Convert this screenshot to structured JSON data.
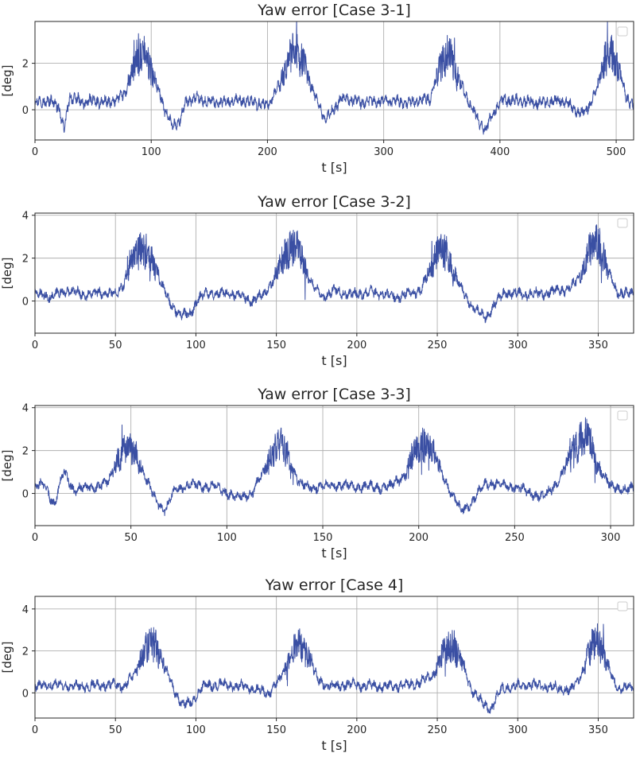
{
  "chart_data": [
    {
      "type": "line",
      "title": "Yaw error [Case 3-1]",
      "xlabel": "t [s]",
      "ylabel": "[deg]",
      "xlim": [
        0,
        515
      ],
      "ylim": [
        -1.3,
        3.8
      ],
      "xticks": [
        0,
        100,
        200,
        300,
        400,
        500
      ],
      "yticks": [
        0,
        2
      ],
      "grid": true,
      "legend": "top-right (empty)",
      "period_s": 132,
      "series": [
        {
          "name": "Yaw error",
          "color": "#3a4fa3",
          "x": [
            0,
            10,
            20,
            25,
            30,
            40,
            50,
            60,
            70,
            78,
            85,
            92,
            98,
            105,
            112,
            118,
            124,
            130,
            136,
            145,
            160,
            180,
            200,
            210,
            217,
            224,
            231,
            238,
            244,
            250,
            256,
            262,
            268,
            280,
            300,
            320,
            340,
            345,
            351,
            357,
            363,
            370,
            376,
            382,
            388,
            394,
            400,
            415,
            435,
            455,
            470,
            477,
            483,
            489,
            495,
            502,
            508,
            515
          ],
          "y": [
            0.3,
            0.4,
            0.2,
            -0.9,
            0.6,
            0.3,
            0.4,
            0.3,
            0.4,
            0.8,
            1.8,
            2.4,
            2.0,
            1.0,
            0.0,
            -0.7,
            -0.5,
            0.3,
            0.5,
            0.4,
            0.3,
            0.4,
            0.2,
            1.0,
            2.0,
            2.6,
            2.0,
            1.0,
            0.2,
            -0.4,
            -0.1,
            0.4,
            0.5,
            0.3,
            0.4,
            0.3,
            0.5,
            1.3,
            2.2,
            2.4,
            1.6,
            0.6,
            0.1,
            -0.6,
            -0.8,
            -0.2,
            0.4,
            0.4,
            0.3,
            0.4,
            -0.2,
            0.2,
            0.8,
            2.0,
            2.5,
            1.8,
            0.6,
            0.2
          ]
        }
      ]
    },
    {
      "type": "line",
      "title": "Yaw error [Case 3-2]",
      "xlabel": "t [s]",
      "ylabel": "[deg]",
      "xlim": [
        0,
        372
      ],
      "ylim": [
        -1.5,
        4.1
      ],
      "xticks": [
        0,
        50,
        100,
        150,
        200,
        250,
        300,
        350
      ],
      "yticks": [
        0,
        2,
        4
      ],
      "grid": true,
      "legend": "top-right (empty)",
      "period_s": 95,
      "series": [
        {
          "name": "Yaw error",
          "color": "#3a4fa3",
          "x": [
            0,
            10,
            20,
            30,
            40,
            50,
            55,
            61,
            66,
            72,
            78,
            84,
            90,
            96,
            102,
            110,
            125,
            135,
            142,
            149,
            155,
            161,
            167,
            173,
            180,
            187,
            195,
            210,
            225,
            240,
            245,
            250,
            256,
            262,
            268,
            274,
            280,
            286,
            292,
            305,
            320,
            333,
            339,
            345,
            350,
            356,
            362,
            372
          ],
          "y": [
            0.3,
            0.2,
            0.5,
            0.3,
            0.4,
            0.3,
            0.8,
            2.0,
            2.6,
            2.0,
            1.0,
            -0.2,
            -0.6,
            -0.7,
            0.2,
            0.4,
            0.3,
            0.0,
            0.3,
            1.1,
            2.2,
            2.7,
            1.8,
            0.6,
            0.2,
            0.5,
            0.3,
            0.4,
            0.2,
            0.5,
            1.4,
            2.4,
            2.2,
            1.1,
            0.1,
            -0.4,
            -0.8,
            -0.1,
            0.4,
            0.3,
            0.4,
            0.6,
            1.2,
            2.4,
            2.8,
            1.4,
            0.4,
            0.3
          ]
        }
      ]
    },
    {
      "type": "line",
      "title": "Yaw error [Case 3-3]",
      "xlabel": "t [s]",
      "ylabel": "[deg]",
      "xlim": [
        0,
        312
      ],
      "ylim": [
        -1.5,
        4.1
      ],
      "xticks": [
        0,
        50,
        100,
        150,
        200,
        250,
        300
      ],
      "yticks": [
        0,
        2,
        4
      ],
      "grid": true,
      "legend": "top-right (empty)",
      "period_s": 80,
      "series": [
        {
          "name": "Yaw error",
          "color": "#3a4fa3",
          "x": [
            0,
            5,
            10,
            15,
            20,
            30,
            38,
            43,
            48,
            53,
            58,
            63,
            68,
            73,
            80,
            95,
            105,
            113,
            118,
            123,
            128,
            133,
            138,
            145,
            155,
            170,
            185,
            193,
            198,
            203,
            208,
            213,
            218,
            222,
            228,
            235,
            250,
            265,
            273,
            278,
            283,
            288,
            293,
            300,
            312
          ],
          "y": [
            0.3,
            0.4,
            -0.5,
            1.0,
            0.2,
            0.3,
            0.5,
            1.6,
            2.2,
            1.8,
            0.6,
            -0.3,
            -0.8,
            0.2,
            0.4,
            0.3,
            -0.2,
            0.0,
            0.8,
            1.8,
            2.4,
            1.6,
            0.4,
            0.3,
            0.4,
            0.3,
            0.3,
            0.9,
            2.0,
            2.4,
            1.8,
            0.8,
            -0.2,
            -0.8,
            -0.4,
            0.5,
            0.3,
            -0.2,
            0.6,
            1.6,
            2.4,
            2.6,
            1.4,
            0.3,
            0.2
          ]
        }
      ]
    },
    {
      "type": "line",
      "title": "Yaw error [Case 4]",
      "xlabel": "t [s]",
      "ylabel": "[deg]",
      "xlim": [
        0,
        372
      ],
      "ylim": [
        -1.2,
        4.6
      ],
      "xticks": [
        0,
        50,
        100,
        150,
        200,
        250,
        300,
        350
      ],
      "yticks": [
        0,
        2,
        4
      ],
      "grid": true,
      "legend": "top-right (empty)",
      "period_s": 95,
      "series": [
        {
          "name": "Yaw error",
          "color": "#3a4fa3",
          "x": [
            0,
            15,
            30,
            45,
            55,
            62,
            68,
            74,
            80,
            86,
            92,
            98,
            104,
            115,
            130,
            145,
            152,
            158,
            164,
            170,
            176,
            184,
            195,
            215,
            235,
            247,
            253,
            259,
            265,
            271,
            277,
            283,
            290,
            305,
            320,
            333,
            339,
            345,
            350,
            356,
            362,
            372
          ],
          "y": [
            0.3,
            0.4,
            0.3,
            0.4,
            0.3,
            0.9,
            2.0,
            2.4,
            1.4,
            0.2,
            -0.6,
            -0.4,
            0.3,
            0.4,
            0.3,
            0.0,
            0.6,
            1.6,
            2.4,
            1.8,
            0.6,
            0.3,
            0.4,
            0.3,
            0.4,
            0.8,
            1.8,
            2.4,
            1.5,
            0.2,
            -0.4,
            -0.8,
            0.2,
            0.4,
            0.3,
            0.1,
            0.8,
            2.0,
            2.6,
            1.2,
            0.2,
            0.3
          ]
        }
      ]
    }
  ]
}
